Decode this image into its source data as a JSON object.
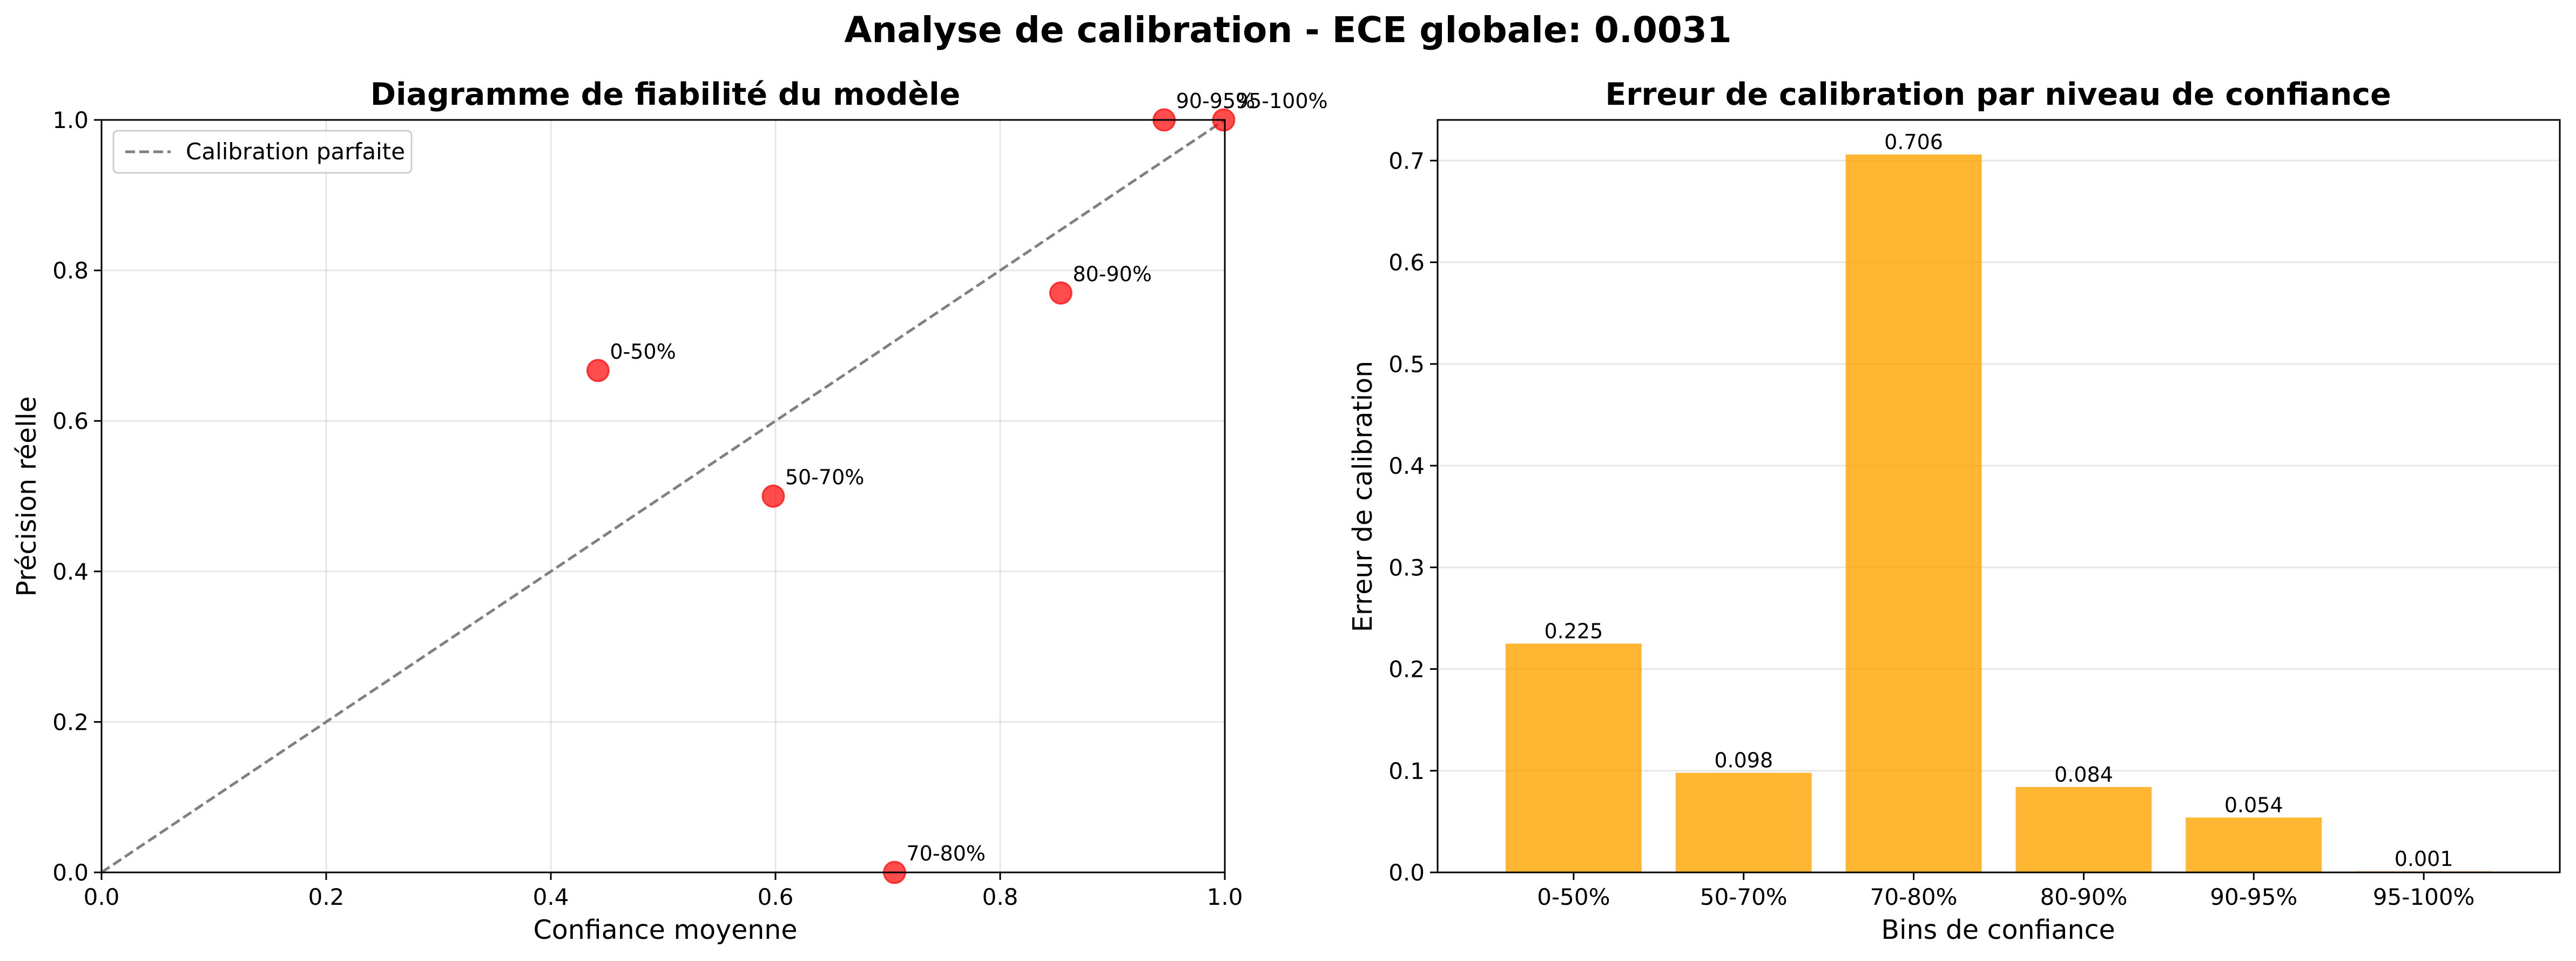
{
  "figure": {
    "suptitle": "Analyse de calibration - ECE globale: 0.0031"
  },
  "colors": {
    "point": "#ff0000",
    "point_alpha": 0.7,
    "diagonal": "#808080",
    "bar": "#ffa500",
    "bar_alpha": 0.8
  },
  "chart_data": [
    {
      "type": "scatter",
      "title": "Diagramme de fiabilité du modèle",
      "xlabel": "Confiance moyenne",
      "ylabel": "Précision réelle",
      "xlim": [
        0,
        1
      ],
      "ylim": [
        0,
        1
      ],
      "xticks": [
        "0.0",
        "0.2",
        "0.4",
        "0.6",
        "0.8",
        "1.0"
      ],
      "yticks": [
        "0.0",
        "0.2",
        "0.4",
        "0.6",
        "0.8",
        "1.0"
      ],
      "grid": true,
      "legend": {
        "position": "top-left",
        "entries": [
          "Calibration parfaite"
        ]
      },
      "reference_line": {
        "name": "Calibration parfaite",
        "style": "dashed",
        "x": [
          0,
          1
        ],
        "y": [
          0,
          1
        ]
      },
      "points": [
        {
          "label": "0-50%",
          "x": 0.442,
          "y": 0.667
        },
        {
          "label": "50-70%",
          "x": 0.598,
          "y": 0.5
        },
        {
          "label": "70-80%",
          "x": 0.706,
          "y": 0.0
        },
        {
          "label": "80-90%",
          "x": 0.854,
          "y": 0.77
        },
        {
          "label": "90-95%",
          "x": 0.946,
          "y": 1.0
        },
        {
          "label": "95-100%",
          "x": 0.999,
          "y": 1.0
        }
      ]
    },
    {
      "type": "bar",
      "title": "Erreur de calibration par niveau de confiance",
      "xlabel": "Bins de confiance",
      "ylabel": "Erreur de calibration",
      "categories": [
        "0-50%",
        "50-70%",
        "70-80%",
        "80-90%",
        "90-95%",
        "95-100%"
      ],
      "values": [
        0.225,
        0.098,
        0.706,
        0.084,
        0.054,
        0.001
      ],
      "value_labels": [
        "0.225",
        "0.098",
        "0.706",
        "0.084",
        "0.054",
        "0.001"
      ],
      "ylim": [
        0,
        0.74
      ],
      "yticks": [
        "0.0",
        "0.1",
        "0.2",
        "0.3",
        "0.4",
        "0.5",
        "0.6",
        "0.7"
      ],
      "grid": "y"
    }
  ]
}
